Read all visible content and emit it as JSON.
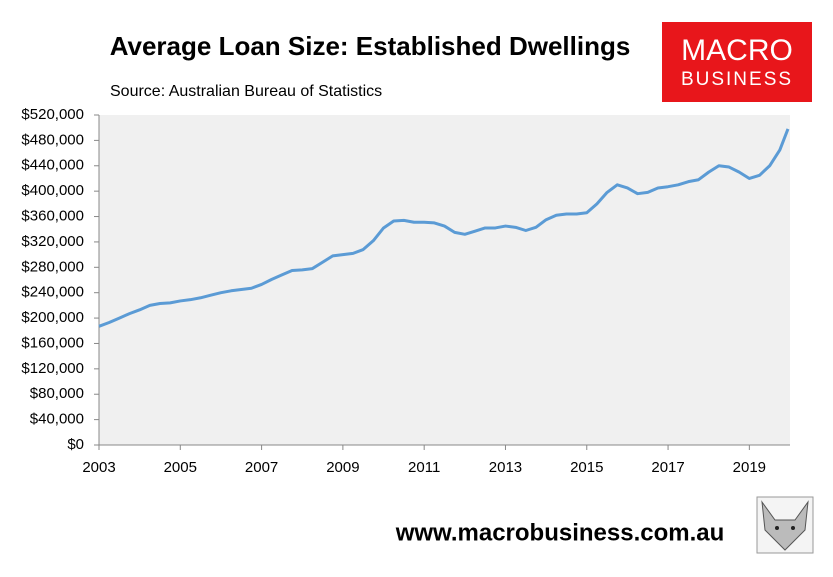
{
  "chart_data": {
    "type": "line",
    "title": "Average Loan Size: Established Dwellings",
    "subtitle": "Source: Australian Bureau of Statistics",
    "logo": [
      "MACRO",
      "BUSINESS"
    ],
    "footer": "www.macrobusiness.com.au",
    "x": [
      2003,
      2003.25,
      2003.5,
      2003.75,
      2004,
      2004.25,
      2004.5,
      2004.75,
      2005,
      2005.25,
      2005.5,
      2005.75,
      2006,
      2006.25,
      2006.5,
      2006.75,
      2007,
      2007.25,
      2007.5,
      2007.75,
      2008,
      2008.25,
      2008.5,
      2008.75,
      2009,
      2009.25,
      2009.5,
      2009.75,
      2010,
      2010.25,
      2010.5,
      2010.75,
      2011,
      2011.25,
      2011.5,
      2011.75,
      2012,
      2012.25,
      2012.5,
      2012.75,
      2013,
      2013.25,
      2013.5,
      2013.75,
      2014,
      2014.25,
      2014.5,
      2014.75,
      2015,
      2015.25,
      2015.5,
      2015.75,
      2016,
      2016.25,
      2016.5,
      2016.75,
      2017,
      2017.25,
      2017.5,
      2017.75,
      2018,
      2018.25,
      2018.5,
      2018.75,
      2019,
      2019.25,
      2019.5,
      2019.75,
      2019.95
    ],
    "series": [
      {
        "name": "Average loan size",
        "color": "#5b9bd5",
        "values": [
          187000,
          193000,
          200000,
          207000,
          213000,
          220000,
          223000,
          224000,
          227000,
          229000,
          232000,
          236000,
          240000,
          243000,
          245000,
          247000,
          253000,
          261000,
          268000,
          275000,
          276000,
          278000,
          288000,
          298000,
          300000,
          302000,
          308000,
          322000,
          342000,
          353000,
          354000,
          351000,
          351000,
          350000,
          345000,
          335000,
          332000,
          337000,
          342000,
          342000,
          345000,
          343000,
          338000,
          343000,
          355000,
          362000,
          364000,
          364000,
          366000,
          380000,
          398000,
          410000,
          405000,
          396000,
          398000,
          405000,
          407000,
          410000,
          415000,
          418000,
          430000,
          440000,
          438000,
          430000,
          420000,
          425000,
          440000,
          465000,
          498000
        ]
      }
    ],
    "xlim": [
      2003,
      2020
    ],
    "xticks": [
      2003,
      2005,
      2007,
      2009,
      2011,
      2013,
      2015,
      2017,
      2019
    ],
    "ylim": [
      0,
      520000
    ],
    "yticks": [
      {
        "value": 0,
        "label": "$0"
      },
      {
        "value": 40000,
        "label": "$40,000"
      },
      {
        "value": 80000,
        "label": "$80,000"
      },
      {
        "value": 120000,
        "label": "$120,000"
      },
      {
        "value": 160000,
        "label": "$160,000"
      },
      {
        "value": 200000,
        "label": "$200,000"
      },
      {
        "value": 240000,
        "label": "$240,000"
      },
      {
        "value": 280000,
        "label": "$280,000"
      },
      {
        "value": 320000,
        "label": "$320,000"
      },
      {
        "value": 360000,
        "label": "$360,000"
      },
      {
        "value": 400000,
        "label": "$400,000"
      },
      {
        "value": 440000,
        "label": "$440,000"
      },
      {
        "value": 480000,
        "label": "$480,000"
      },
      {
        "value": 520000,
        "label": "$520,000"
      }
    ],
    "plot_background": "#f0f0f0"
  }
}
